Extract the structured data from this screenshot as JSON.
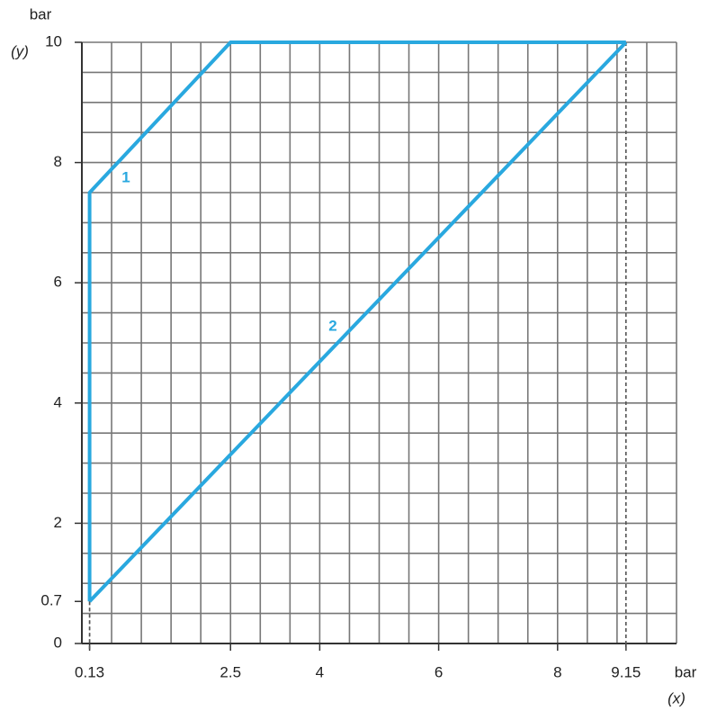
{
  "chart_data": {
    "type": "line",
    "x_label": "bar",
    "x_label_sub": "(x)",
    "y_label": "bar",
    "y_label_sub": "(y)",
    "series": [
      {
        "name": "1",
        "color": "#29a8df",
        "x": [
          0.13,
          0.13,
          2.5,
          9.15
        ],
        "values": [
          0.7,
          7.5,
          10,
          10
        ]
      },
      {
        "name": "2",
        "color": "#29a8df",
        "x": [
          0.13,
          9.15
        ],
        "values": [
          0.7,
          10
        ]
      }
    ],
    "xlim": [
      0,
      10
    ],
    "ylim": [
      0,
      10
    ],
    "xticks": [
      0.13,
      2.5,
      4,
      6,
      8,
      9.15
    ],
    "yticks": [
      0,
      0.7,
      2,
      4,
      6,
      8,
      10
    ],
    "grid": true,
    "grid_step": 0.5
  }
}
